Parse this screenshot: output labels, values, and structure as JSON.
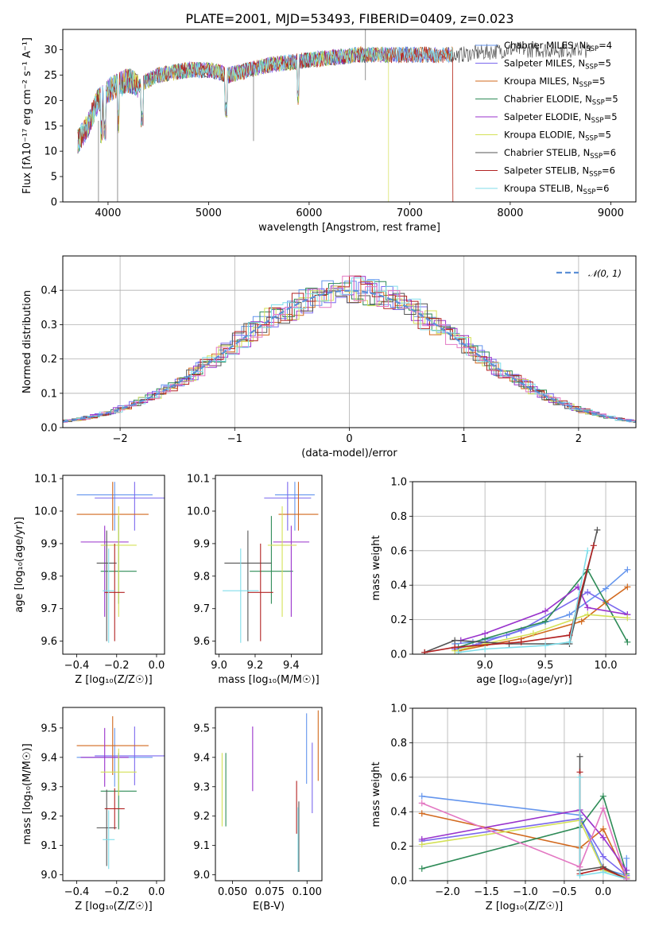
{
  "title": "PLATE=2001, MJD=53493, FIBERID=0409, z=0.023",
  "colors": [
    "#6495ed",
    "#7b68ee",
    "#d2691e",
    "#2e8b57",
    "#9932cc",
    "#d4e157",
    "#555555",
    "#b22222",
    "#80deea"
  ],
  "chart_data": [
    {
      "id": "spectrum",
      "type": "line",
      "xlabel": "wavelength [Angstrom, rest frame]",
      "ylabel": "Flux [f$_\\lambda$10$^{-17}$ erg cm$^{-2}$ s$^{-1}$ A$^{-1}$]",
      "ylabel_text": "Flux [fλ10⁻¹⁷ erg cm⁻² s⁻¹ A⁻¹]",
      "xlim": [
        3550,
        9250
      ],
      "ylim": [
        0,
        34
      ],
      "xticks": [
        "4000",
        "5000",
        "6000",
        "7000",
        "8000",
        "9000"
      ],
      "yticks": [
        "0",
        "5",
        "10",
        "15",
        "20",
        "25",
        "30"
      ],
      "grid": false,
      "legend_position": "top-right",
      "series": [
        {
          "name": "Chabrier MILES, N_SSP=4",
          "label_main": "Chabrier MILES, N",
          "label_sub": "SSP",
          "label_tail": "=4",
          "x_range": [
            3700,
            7400
          ]
        },
        {
          "name": "Salpeter MILES, N_SSP=5",
          "label_main": "Salpeter MILES, N",
          "label_sub": "SSP",
          "label_tail": "=5",
          "x_range": [
            3700,
            7400
          ]
        },
        {
          "name": "Kroupa MILES, N_SSP=5",
          "label_main": "Kroupa MILES, N",
          "label_sub": "SSP",
          "label_tail": "=5",
          "x_range": [
            3700,
            7430
          ]
        },
        {
          "name": "Chabrier ELODIE, N_SSP=5",
          "label_main": "Chabrier ELODIE, N",
          "label_sub": "SSP",
          "label_tail": "=5",
          "x_range": [
            3700,
            6800
          ]
        },
        {
          "name": "Salpeter ELODIE, N_SSP=5",
          "label_main": "Salpeter ELODIE, N",
          "label_sub": "SSP",
          "label_tail": "=5",
          "x_range": [
            3700,
            6800
          ]
        },
        {
          "name": "Kroupa ELODIE, N_SSP=5",
          "label_main": "Kroupa ELODIE, N",
          "label_sub": "SSP",
          "label_tail": "=5",
          "x_range": [
            3700,
            6800
          ]
        },
        {
          "name": "Chabrier STELIB, N_SSP=6",
          "label_main": "Chabrier STELIB, N",
          "label_sub": "SSP",
          "label_tail": "=6",
          "x_range": [
            3700,
            8800
          ]
        },
        {
          "name": "Salpeter STELIB, N_SSP=6",
          "label_main": "Salpeter STELIB, N",
          "label_sub": "SSP",
          "label_tail": "=6",
          "x_range": [
            3700,
            7430
          ]
        },
        {
          "name": "Kroupa STELIB, N_SSP=6",
          "label_main": "Kroupa STELIB, N",
          "label_sub": "SSP",
          "label_tail": "=6",
          "x_range": [
            3700,
            7430
          ]
        }
      ],
      "shape_points": [
        [
          3700,
          12
        ],
        [
          3800,
          15
        ],
        [
          3900,
          20
        ],
        [
          4000,
          22
        ],
        [
          4100,
          23
        ],
        [
          4200,
          24
        ],
        [
          4300,
          23
        ],
        [
          4500,
          25
        ],
        [
          4800,
          26
        ],
        [
          5000,
          26
        ],
        [
          5200,
          25
        ],
        [
          5400,
          26
        ],
        [
          5600,
          27
        ],
        [
          6000,
          28
        ],
        [
          6500,
          29
        ],
        [
          7000,
          29
        ],
        [
          7200,
          29
        ],
        [
          7500,
          29
        ],
        [
          8000,
          30
        ],
        [
          8500,
          30
        ],
        [
          8800,
          30
        ]
      ]
    },
    {
      "id": "residuals",
      "type": "line",
      "xlabel": "(data-model)/error",
      "ylabel": "Normed distribution",
      "xlim": [
        -2.5,
        2.5
      ],
      "ylim": [
        0,
        0.5
      ],
      "xticks": [
        "−2",
        "−1",
        "0",
        "1",
        "2"
      ],
      "yticks": [
        "0.0",
        "0.1",
        "0.2",
        "0.3",
        "0.4"
      ],
      "grid": true,
      "legend": "𝒩(0, 1)",
      "legend_position": "top-right"
    },
    {
      "id": "age-vs-Z",
      "type": "scatter",
      "xlabel": "Z [log₁₀(Z/Z☉)]",
      "ylabel": "age  [log₁₀(age/yr)]",
      "xlim": [
        -0.47,
        0.04
      ],
      "ylim": [
        9.56,
        10.11
      ],
      "xticks": [
        "−0.4",
        "−0.2",
        "0.0"
      ],
      "yticks": [
        "9.6",
        "9.7",
        "9.8",
        "9.9",
        "10.0",
        "10.1"
      ],
      "grid": false,
      "points": [
        {
          "x": -0.21,
          "xerr": 0.19,
          "y": 10.05,
          "yerr_lo": 0.11,
          "yerr_hi": 0.04
        },
        {
          "x": -0.11,
          "xerr": 0.2,
          "y": 10.04,
          "yerr_lo": 0.1,
          "yerr_hi": 0.05
        },
        {
          "x": -0.22,
          "xerr": 0.18,
          "y": 9.99,
          "yerr_lo": 0.05,
          "yerr_hi": 0.1
        },
        {
          "x": -0.19,
          "xerr": 0.09,
          "y": 9.815,
          "yerr_lo": 0.1,
          "yerr_hi": 0.17
        },
        {
          "x": -0.26,
          "xerr": 0.12,
          "y": 9.905,
          "yerr_lo": 0.23,
          "yerr_hi": 0.05
        },
        {
          "x": -0.19,
          "xerr": 0.09,
          "y": 9.895,
          "yerr_lo": 0.22,
          "yerr_hi": 0.12
        },
        {
          "x": -0.25,
          "xerr": 0.05,
          "y": 9.84,
          "yerr_lo": 0.24,
          "yerr_hi": 0.1
        },
        {
          "x": -0.21,
          "xerr": 0.05,
          "y": 9.75,
          "yerr_lo": 0.15,
          "yerr_hi": 0.15
        },
        {
          "x": -0.24,
          "xerr": 0.03,
          "y": 9.755,
          "yerr_lo": 0.16,
          "yerr_hi": 0.13
        }
      ]
    },
    {
      "id": "age-vs-mass",
      "type": "scatter",
      "xlabel": "mass [log₁₀(M/M☉)]",
      "ylabel": "",
      "xlim": [
        8.98,
        9.57
      ],
      "ylim": [
        9.56,
        10.11
      ],
      "xticks": [
        "9.0",
        "9.2",
        "9.4"
      ],
      "yticks": [
        "9.6",
        "9.7",
        "9.8",
        "9.9",
        "10.0",
        "10.1"
      ],
      "grid": false,
      "points": [
        {
          "x": 9.42,
          "xerr": 0.11,
          "y": 10.05,
          "yerr_lo": 0.11,
          "yerr_hi": 0.04
        },
        {
          "x": 9.38,
          "xerr": 0.13,
          "y": 10.04,
          "yerr_lo": 0.1,
          "yerr_hi": 0.05
        },
        {
          "x": 9.44,
          "xerr": 0.11,
          "y": 9.99,
          "yerr_lo": 0.05,
          "yerr_hi": 0.1
        },
        {
          "x": 9.29,
          "xerr": 0.12,
          "y": 9.815,
          "yerr_lo": 0.1,
          "yerr_hi": 0.17
        },
        {
          "x": 9.4,
          "xerr": 0.1,
          "y": 9.905,
          "yerr_lo": 0.23,
          "yerr_hi": 0.05
        },
        {
          "x": 9.35,
          "xerr": 0.08,
          "y": 9.895,
          "yerr_lo": 0.22,
          "yerr_hi": 0.12
        },
        {
          "x": 9.16,
          "xerr": 0.13,
          "y": 9.84,
          "yerr_lo": 0.24,
          "yerr_hi": 0.1
        },
        {
          "x": 9.23,
          "xerr": 0.07,
          "y": 9.75,
          "yerr_lo": 0.15,
          "yerr_hi": 0.15
        },
        {
          "x": 9.12,
          "xerr": 0.1,
          "y": 9.755,
          "yerr_lo": 0.16,
          "yerr_hi": 0.13
        }
      ]
    },
    {
      "id": "weight-vs-age",
      "type": "line",
      "xlabel": "age  [log₁₀(age/yr)]",
      "ylabel": "mass weight",
      "xlim": [
        8.4,
        10.25
      ],
      "ylim": [
        0,
        1.0
      ],
      "xticks": [
        "9.0",
        "9.5",
        "10.0"
      ],
      "yticks": [
        "0.0",
        "0.2",
        "0.4",
        "0.6",
        "0.8",
        "1.0"
      ],
      "grid": true,
      "series": [
        {
          "x": [
            8.75,
            8.9,
            9.18,
            9.7,
            10.0,
            10.18
          ],
          "y": [
            0.06,
            0.07,
            0.11,
            0.23,
            0.38,
            0.49
          ]
        },
        {
          "x": [
            8.75,
            8.95,
            9.3,
            9.85,
            10.18
          ],
          "y": [
            0.03,
            0.06,
            0.14,
            0.36,
            0.23
          ]
        },
        {
          "x": [
            8.78,
            9.0,
            9.3,
            9.8,
            10.0,
            10.18
          ],
          "y": [
            0.02,
            0.05,
            0.09,
            0.19,
            0.3,
            0.39
          ]
        },
        {
          "x": [
            8.78,
            9.0,
            9.5,
            9.85,
            10.18
          ],
          "y": [
            0.04,
            0.09,
            0.19,
            0.49,
            0.07
          ]
        },
        {
          "x": [
            8.8,
            9.0,
            9.5,
            9.77,
            9.85,
            10.18
          ],
          "y": [
            0.08,
            0.12,
            0.25,
            0.39,
            0.27,
            0.23
          ]
        },
        {
          "x": [
            8.75,
            9.0,
            9.4,
            9.85,
            10.18
          ],
          "y": [
            0.02,
            0.06,
            0.12,
            0.23,
            0.21
          ]
        },
        {
          "x": [
            8.5,
            8.75,
            9.2,
            9.7,
            9.93
          ],
          "y": [
            0.01,
            0.08,
            0.06,
            0.06,
            0.72
          ]
        },
        {
          "x": [
            8.5,
            8.75,
            9.3,
            9.7,
            9.9
          ],
          "y": [
            0.01,
            0.04,
            0.07,
            0.11,
            0.63
          ]
        },
        {
          "x": [
            8.78,
            9.0,
            9.5,
            9.7,
            9.85
          ],
          "y": [
            0.01,
            0.03,
            0.05,
            0.07,
            0.6
          ]
        }
      ]
    },
    {
      "id": "mass-vs-Z",
      "type": "scatter",
      "xlabel": "Z [log₁₀(Z/Z☉)]",
      "ylabel": "mass [log₁₀(M/M☉)]",
      "xlim": [
        -0.47,
        0.04
      ],
      "ylim": [
        8.98,
        9.57
      ],
      "xticks": [
        "−0.4",
        "−0.2",
        "0.0"
      ],
      "yticks": [
        "9.0",
        "9.1",
        "9.2",
        "9.3",
        "9.4",
        "9.5"
      ],
      "grid": false,
      "points": [
        {
          "x": -0.21,
          "xerr": 0.19,
          "y": 9.4,
          "yerr": 0.1
        },
        {
          "x": -0.11,
          "xerr": 0.2,
          "y": 9.405,
          "yerr": 0.1
        },
        {
          "x": -0.22,
          "xerr": 0.18,
          "y": 9.44,
          "yerr": 0.1
        },
        {
          "x": -0.19,
          "xerr": 0.09,
          "y": 9.285,
          "yerr": 0.13
        },
        {
          "x": -0.26,
          "xerr": 0.12,
          "y": 9.4,
          "yerr": 0.1
        },
        {
          "x": -0.19,
          "xerr": 0.09,
          "y": 9.35,
          "yerr": 0.08
        },
        {
          "x": -0.25,
          "xerr": 0.05,
          "y": 9.16,
          "yerr": 0.13
        },
        {
          "x": -0.21,
          "xerr": 0.05,
          "y": 9.225,
          "yerr": 0.07
        },
        {
          "x": -0.24,
          "xerr": 0.03,
          "y": 9.12,
          "yerr": 0.1
        }
      ]
    },
    {
      "id": "mass-vs-EBV",
      "type": "scatter",
      "xlabel": "E(B-V)",
      "ylabel": "",
      "xlim": [
        0.0385,
        0.11
      ],
      "ylim": [
        8.98,
        9.57
      ],
      "xticks": [
        "0.050",
        "0.075",
        "0.100"
      ],
      "yticks": [
        "9.0",
        "9.1",
        "9.2",
        "9.3",
        "9.4",
        "9.5"
      ],
      "grid": false,
      "points": [
        {
          "x": 0.0997,
          "y": 9.43,
          "yerr": 0.12
        },
        {
          "x": 0.1035,
          "y": 9.33,
          "yerr": 0.12
        },
        {
          "x": 0.1075,
          "y": 9.44,
          "yerr": 0.12
        },
        {
          "x": 0.0455,
          "y": 9.29,
          "yerr": 0.125
        },
        {
          "x": 0.0635,
          "y": 9.395,
          "yerr": 0.11
        },
        {
          "x": 0.043,
          "y": 9.29,
          "yerr": 0.125
        },
        {
          "x": 0.0945,
          "y": 9.13,
          "yerr": 0.12
        },
        {
          "x": 0.093,
          "y": 9.23,
          "yerr": 0.09
        },
        {
          "x": 0.094,
          "y": 9.12,
          "yerr": 0.11
        }
      ]
    },
    {
      "id": "weight-vs-Z",
      "type": "line",
      "xlabel": "Z [log₁₀(Z/Z☉)]",
      "ylabel": "mass weight",
      "xlim": [
        -2.45,
        0.42
      ],
      "ylim": [
        0,
        1.0
      ],
      "xticks": [
        "−2.0",
        "−1.5",
        "−1.0",
        "−0.5",
        "0.0"
      ],
      "yticks": [
        "0.0",
        "0.2",
        "0.4",
        "0.6",
        "0.8",
        "1.0"
      ],
      "grid": true,
      "series": [
        {
          "x": [
            -2.33,
            -0.3,
            0.0,
            0.3,
            0.3
          ],
          "y": [
            0.49,
            0.38,
            0.07,
            0.03,
            0.13
          ]
        },
        {
          "x": [
            -2.33,
            -0.3,
            0.0,
            0.3
          ],
          "y": [
            0.23,
            0.36,
            0.14,
            0.03
          ]
        },
        {
          "x": [
            -2.33,
            -0.3,
            0.0,
            0.3
          ],
          "y": [
            0.39,
            0.19,
            0.3,
            0.02
          ]
        },
        {
          "x": [
            -2.33,
            -0.3,
            0.0,
            0.3
          ],
          "y": [
            0.07,
            0.31,
            0.49,
            0.04
          ]
        },
        {
          "x": [
            -2.33,
            -0.3,
            0.0,
            0.3
          ],
          "y": [
            0.24,
            0.41,
            0.25,
            0.06
          ]
        },
        {
          "x": [
            -2.33,
            -0.3,
            0.0,
            0.3
          ],
          "y": [
            0.21,
            0.35,
            0.06,
            0.02
          ]
        },
        {
          "x": [
            -0.3,
            -0.3,
            0.0,
            0.3
          ],
          "y": [
            0.72,
            0.06,
            0.08,
            0.01
          ]
        },
        {
          "x": [
            -0.3,
            -0.3,
            0.0,
            0.3
          ],
          "y": [
            0.63,
            0.04,
            0.07,
            0.01
          ]
        },
        {
          "x": [
            -0.3,
            -0.3,
            0.0,
            0.3
          ],
          "y": [
            0.6,
            0.03,
            0.05,
            0.01
          ]
        }
      ],
      "extra_series": [
        {
          "color": "#e377c2",
          "x": [
            -2.33,
            -0.3,
            0.0,
            0.3
          ],
          "y": [
            0.45,
            0.08,
            0.42,
            0.01
          ]
        }
      ]
    }
  ]
}
